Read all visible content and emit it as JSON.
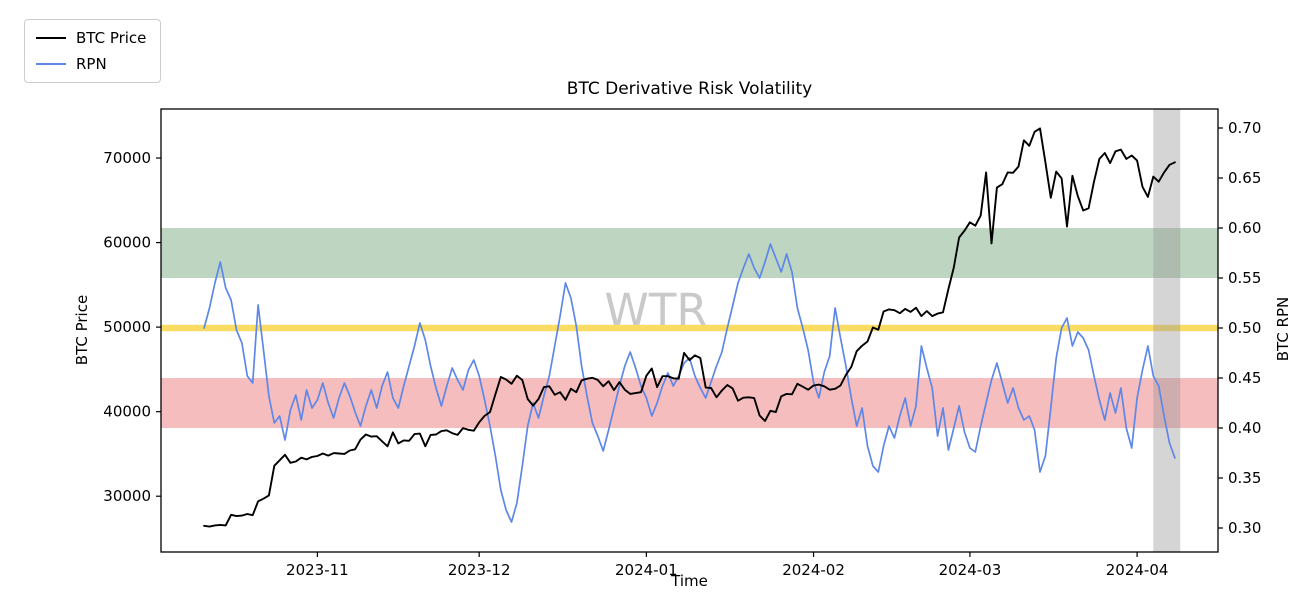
{
  "chart_data": {
    "type": "line",
    "title": "BTC Derivative Risk Volatility",
    "grid": false,
    "legend_position": "upper-left-outside",
    "x_axis": {
      "label": "Time",
      "range": [
        "2023-10-03",
        "2024-04-16"
      ],
      "ticks": [
        {
          "date": "2023-11-01",
          "label": "2023-11"
        },
        {
          "date": "2023-12-01",
          "label": "2023-12"
        },
        {
          "date": "2024-01-01",
          "label": "2024-01"
        },
        {
          "date": "2024-02-01",
          "label": "2024-02"
        },
        {
          "date": "2024-03-01",
          "label": "2024-03"
        },
        {
          "date": "2024-04-01",
          "label": "2024-04"
        }
      ]
    },
    "y_left": {
      "label": "BTC Price",
      "range": [
        23400,
        75800
      ],
      "ticks": [
        {
          "value": 30000,
          "label": "30000"
        },
        {
          "value": 40000,
          "label": "40000"
        },
        {
          "value": 50000,
          "label": "50000"
        },
        {
          "value": 60000,
          "label": "60000"
        },
        {
          "value": 70000,
          "label": "70000"
        }
      ]
    },
    "y_right": {
      "label": "BTC RPN",
      "range": [
        0.276,
        0.719
      ],
      "ticks": [
        {
          "value": 0.3,
          "label": "0.30"
        },
        {
          "value": 0.35,
          "label": "0.35"
        },
        {
          "value": 0.4,
          "label": "0.40"
        },
        {
          "value": 0.45,
          "label": "0.45"
        },
        {
          "value": 0.5,
          "label": "0.50"
        },
        {
          "value": 0.55,
          "label": "0.55"
        },
        {
          "value": 0.6,
          "label": "0.60"
        },
        {
          "value": 0.65,
          "label": "0.65"
        },
        {
          "value": 0.7,
          "label": "0.70"
        }
      ]
    },
    "annotations": {
      "green_band": {
        "axis": "right",
        "from": 0.55,
        "to": 0.6,
        "color": "#bed5c1"
      },
      "red_band": {
        "axis": "right",
        "from": 0.4,
        "to": 0.45,
        "color": "#f6bdbe"
      },
      "yellow_line": {
        "axis": "right",
        "value": 0.5,
        "color": "#fbdc62",
        "thickness": 6.4
      },
      "recent_band": {
        "from": "2024-04-04",
        "to": "2024-04-09",
        "color": "rgba(150,150,150,0.4)"
      },
      "watermark": {
        "text": "WTR",
        "color": "#c9c9c9"
      }
    },
    "series": [
      {
        "name": "BTC Price",
        "axis": "left",
        "color": "#000000",
        "line_width": 1.9,
        "start": "2023-10-11",
        "step_days": 1,
        "values": [
          26500,
          26400,
          26550,
          26600,
          26550,
          27800,
          27650,
          27700,
          27900,
          27750,
          29400,
          29700,
          30100,
          33600,
          34250,
          34900,
          33950,
          34100,
          34550,
          34350,
          34650,
          34750,
          35050,
          34800,
          35100,
          35050,
          35000,
          35400,
          35550,
          36700,
          37300,
          37050,
          37100,
          36500,
          35900,
          37550,
          36250,
          36600,
          36550,
          37350,
          37400,
          35900,
          37250,
          37300,
          37700,
          37800,
          37450,
          37250,
          38050,
          37850,
          37750,
          38750,
          39500,
          39950,
          42050,
          44100,
          43800,
          43300,
          44250,
          43750,
          41500,
          40700,
          41500,
          42900,
          43000,
          42000,
          42300,
          41400,
          42700,
          42300,
          43700,
          43900,
          44000,
          43750,
          43000,
          43600,
          42550,
          43500,
          42600,
          42100,
          42200,
          42300,
          44250,
          45100,
          42900,
          44200,
          44200,
          43950,
          43900,
          46950,
          46100,
          46650,
          46350,
          42850,
          42800,
          41700,
          42500,
          43150,
          42750,
          41300,
          41650,
          41700,
          41600,
          39550,
          38900,
          40100,
          39950,
          41800,
          42100,
          42050,
          43300,
          42950,
          42600,
          43100,
          43200,
          43000,
          42600,
          42700,
          43100,
          44350,
          45300,
          47150,
          47800,
          48300,
          49950,
          49700,
          51850,
          52100,
          52000,
          51650,
          52150,
          51800,
          52300,
          51300,
          51900,
          51300,
          51600,
          51750,
          54500,
          57050,
          60600,
          61400,
          62400,
          62000,
          63200,
          68300,
          59900,
          66500,
          66900,
          68300,
          68250,
          69000,
          72100,
          71450,
          73100,
          73500,
          69500,
          65300,
          68400,
          67600,
          61900,
          67900,
          65500,
          63800,
          64050,
          67200,
          69900,
          70600,
          69400,
          70800,
          71000,
          69900,
          70300,
          69700,
          66600,
          65400,
          67800,
          67200,
          68300,
          69200,
          69500
        ]
      },
      {
        "name": "RPN",
        "axis": "right",
        "color": "#5d87e8",
        "line_width": 1.7,
        "start": "2023-10-11",
        "step_days": 1,
        "values": [
          0.5,
          0.52,
          0.545,
          0.566,
          0.54,
          0.528,
          0.498,
          0.485,
          0.452,
          0.445,
          0.523,
          0.478,
          0.432,
          0.405,
          0.412,
          0.388,
          0.418,
          0.433,
          0.408,
          0.438,
          0.42,
          0.428,
          0.445,
          0.425,
          0.41,
          0.43,
          0.445,
          0.432,
          0.416,
          0.402,
          0.422,
          0.438,
          0.42,
          0.442,
          0.456,
          0.43,
          0.42,
          0.442,
          0.462,
          0.482,
          0.505,
          0.488,
          0.462,
          0.44,
          0.422,
          0.442,
          0.46,
          0.448,
          0.438,
          0.458,
          0.468,
          0.452,
          0.428,
          0.402,
          0.372,
          0.338,
          0.318,
          0.306,
          0.325,
          0.362,
          0.402,
          0.425,
          0.41,
          0.432,
          0.452,
          0.482,
          0.512,
          0.545,
          0.53,
          0.502,
          0.462,
          0.432,
          0.405,
          0.392,
          0.377,
          0.398,
          0.42,
          0.442,
          0.462,
          0.476,
          0.46,
          0.442,
          0.43,
          0.412,
          0.425,
          0.442,
          0.455,
          0.442,
          0.452,
          0.465,
          0.47,
          0.452,
          0.44,
          0.43,
          0.446,
          0.462,
          0.476,
          0.5,
          0.522,
          0.545,
          0.56,
          0.574,
          0.56,
          0.55,
          0.566,
          0.584,
          0.57,
          0.556,
          0.574,
          0.556,
          0.52,
          0.5,
          0.478,
          0.446,
          0.43,
          0.456,
          0.472,
          0.52,
          0.49,
          0.462,
          0.43,
          0.402,
          0.42,
          0.382,
          0.362,
          0.356,
          0.382,
          0.402,
          0.39,
          0.412,
          0.43,
          0.402,
          0.422,
          0.482,
          0.46,
          0.44,
          0.392,
          0.42,
          0.378,
          0.4,
          0.422,
          0.396,
          0.38,
          0.376,
          0.402,
          0.425,
          0.448,
          0.465,
          0.445,
          0.425,
          0.44,
          0.42,
          0.408,
          0.412,
          0.398,
          0.356,
          0.372,
          0.42,
          0.47,
          0.5,
          0.51,
          0.482,
          0.496,
          0.49,
          0.478,
          0.452,
          0.428,
          0.408,
          0.435,
          0.415,
          0.44,
          0.4,
          0.38,
          0.43,
          0.458,
          0.482,
          0.452,
          0.442,
          0.412,
          0.385,
          0.37
        ]
      }
    ]
  }
}
